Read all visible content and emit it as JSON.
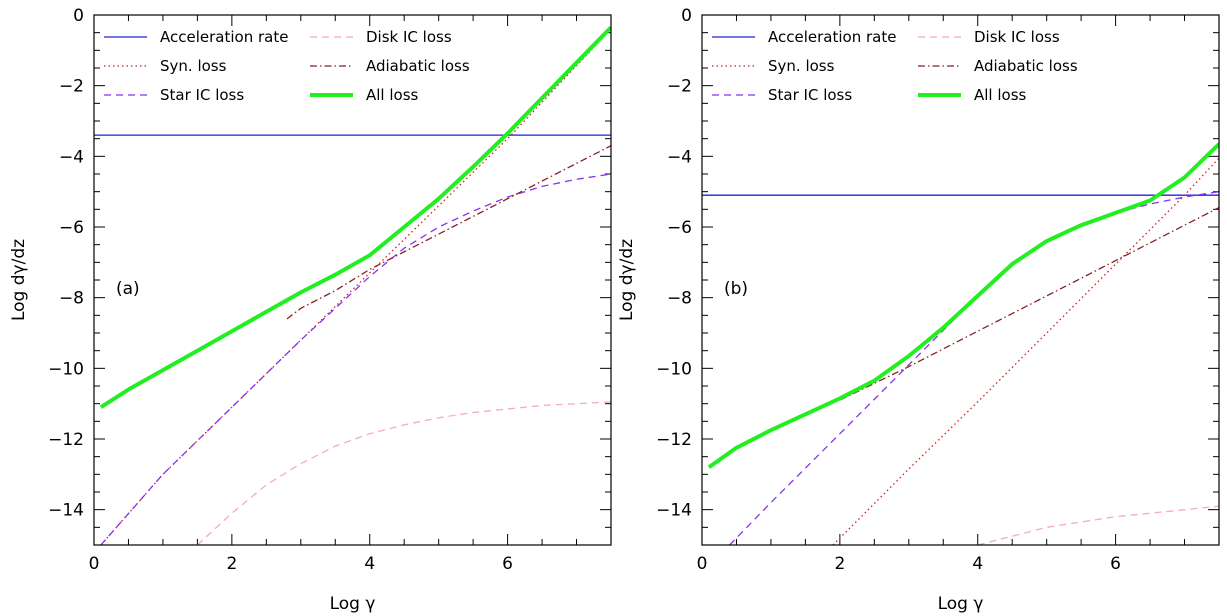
{
  "chart_data": [
    {
      "type": "line",
      "panel_label": "(a)",
      "xlabel": "Log γ",
      "ylabel": "Log dγ/dz",
      "xlim": [
        0,
        7.5
      ],
      "ylim": [
        -15,
        0
      ],
      "xticks": [
        0,
        2,
        4,
        6
      ],
      "yticks": [
        0,
        -2,
        -4,
        -6,
        -8,
        -10,
        -12,
        -14
      ],
      "legend_position": "top-left",
      "series": [
        {
          "name": "Acceleration rate",
          "color": "#2222dd",
          "style": "solid",
          "points": [
            [
              0,
              -3.4
            ],
            [
              7.5,
              -3.4
            ]
          ]
        },
        {
          "name": "Syn. loss",
          "color": "#cc2222",
          "style": "dotted",
          "points": [
            [
              0.1,
              -15
            ],
            [
              1,
              -13.0
            ],
            [
              2,
              -11.1
            ],
            [
              3,
              -9.2
            ],
            [
              4,
              -7.3
            ],
            [
              5,
              -5.4
            ],
            [
              6,
              -3.5
            ],
            [
              7.5,
              -0.4
            ]
          ]
        },
        {
          "name": "Star IC loss",
          "color": "#8833ee",
          "style": "dashed",
          "points": [
            [
              0.1,
              -15
            ],
            [
              1,
              -13.0
            ],
            [
              2,
              -11.1
            ],
            [
              3,
              -9.2
            ],
            [
              4,
              -7.4
            ],
            [
              4.5,
              -6.6
            ],
            [
              5,
              -6.0
            ],
            [
              5.5,
              -5.55
            ],
            [
              6,
              -5.15
            ],
            [
              6.5,
              -4.85
            ],
            [
              7,
              -4.65
            ],
            [
              7.5,
              -4.5
            ]
          ]
        },
        {
          "name": "Disk IC loss",
          "color": "#f4aac0",
          "style": "dashed",
          "points": [
            [
              1.5,
              -15
            ],
            [
              2,
              -14.1
            ],
            [
              2.5,
              -13.3
            ],
            [
              3,
              -12.7
            ],
            [
              3.5,
              -12.2
            ],
            [
              4,
              -11.85
            ],
            [
              4.5,
              -11.6
            ],
            [
              5,
              -11.4
            ],
            [
              5.5,
              -11.25
            ],
            [
              6,
              -11.15
            ],
            [
              6.5,
              -11.05
            ],
            [
              7,
              -11.0
            ],
            [
              7.5,
              -10.95
            ]
          ]
        },
        {
          "name": "Adiabatic loss",
          "color": "#882222",
          "style": "dashdot",
          "points": [
            [
              2.8,
              -8.6
            ],
            [
              3,
              -8.3
            ],
            [
              3.5,
              -7.8
            ],
            [
              4,
              -7.2
            ],
            [
              5,
              -6.2
            ],
            [
              6,
              -5.2
            ],
            [
              7,
              -4.2
            ],
            [
              7.5,
              -3.7
            ]
          ]
        },
        {
          "name": "All loss",
          "color": "#22ee22",
          "style": "thick",
          "points": [
            [
              0.1,
              -11.1
            ],
            [
              0.5,
              -10.6
            ],
            [
              1,
              -10.05
            ],
            [
              1.5,
              -9.5
            ],
            [
              2,
              -8.95
            ],
            [
              2.5,
              -8.4
            ],
            [
              3,
              -7.85
            ],
            [
              3.5,
              -7.35
            ],
            [
              4,
              -6.8
            ],
            [
              4.5,
              -6.0
            ],
            [
              5,
              -5.2
            ],
            [
              5.5,
              -4.3
            ],
            [
              6,
              -3.35
            ],
            [
              6.5,
              -2.35
            ],
            [
              7,
              -1.35
            ],
            [
              7.5,
              -0.35
            ]
          ]
        }
      ]
    },
    {
      "type": "line",
      "panel_label": "(b)",
      "xlabel": "Log γ",
      "ylabel": "Log dγ/dz",
      "xlim": [
        0,
        7.5
      ],
      "ylim": [
        -15,
        0
      ],
      "xticks": [
        0,
        2,
        4,
        6
      ],
      "yticks": [
        0,
        -2,
        -4,
        -6,
        -8,
        -10,
        -12,
        -14
      ],
      "legend_position": "top-left",
      "series": [
        {
          "name": "Acceleration rate",
          "color": "#2222dd",
          "style": "solid",
          "points": [
            [
              0,
              -5.1
            ],
            [
              7.5,
              -5.1
            ]
          ]
        },
        {
          "name": "Syn. loss",
          "color": "#cc2222",
          "style": "dotted",
          "points": [
            [
              1.9,
              -15
            ],
            [
              3,
              -12.85
            ],
            [
              4,
              -10.95
            ],
            [
              5,
              -9.0
            ],
            [
              6,
              -7.05
            ],
            [
              7,
              -5.1
            ],
            [
              7.5,
              -4.05
            ]
          ]
        },
        {
          "name": "Star IC loss",
          "color": "#8833ee",
          "style": "dashed",
          "points": [
            [
              0.4,
              -15
            ],
            [
              1,
              -13.8
            ],
            [
              2,
              -11.85
            ],
            [
              3,
              -9.9
            ],
            [
              4,
              -7.95
            ],
            [
              4.5,
              -7.05
            ],
            [
              5,
              -6.4
            ],
            [
              5.5,
              -5.95
            ],
            [
              6,
              -5.6
            ],
            [
              6.5,
              -5.35
            ],
            [
              7,
              -5.15
            ],
            [
              7.5,
              -5.0
            ]
          ]
        },
        {
          "name": "Disk IC loss",
          "color": "#f4aac0",
          "style": "dashed",
          "points": [
            [
              4,
              -15
            ],
            [
              4.5,
              -14.75
            ],
            [
              5,
              -14.5
            ],
            [
              5.5,
              -14.35
            ],
            [
              6,
              -14.2
            ],
            [
              6.5,
              -14.1
            ],
            [
              7,
              -14.0
            ],
            [
              7.5,
              -13.9
            ]
          ]
        },
        {
          "name": "Adiabatic loss",
          "color": "#882222",
          "style": "dashdot",
          "points": [
            [
              2,
              -10.9
            ],
            [
              3,
              -9.95
            ],
            [
              4,
              -8.95
            ],
            [
              5,
              -7.95
            ],
            [
              6,
              -6.95
            ],
            [
              7,
              -5.95
            ],
            [
              7.5,
              -5.45
            ]
          ]
        },
        {
          "name": "All loss",
          "color": "#22ee22",
          "style": "thick",
          "points": [
            [
              0.1,
              -12.8
            ],
            [
              0.5,
              -12.25
            ],
            [
              1,
              -11.75
            ],
            [
              1.5,
              -11.3
            ],
            [
              2,
              -10.85
            ],
            [
              2.5,
              -10.35
            ],
            [
              3,
              -9.65
            ],
            [
              3.5,
              -8.85
            ],
            [
              4,
              -7.95
            ],
            [
              4.5,
              -7.05
            ],
            [
              5,
              -6.4
            ],
            [
              5.5,
              -5.95
            ],
            [
              6,
              -5.6
            ],
            [
              6.5,
              -5.25
            ],
            [
              7,
              -4.6
            ],
            [
              7.5,
              -3.65
            ]
          ]
        }
      ]
    }
  ]
}
